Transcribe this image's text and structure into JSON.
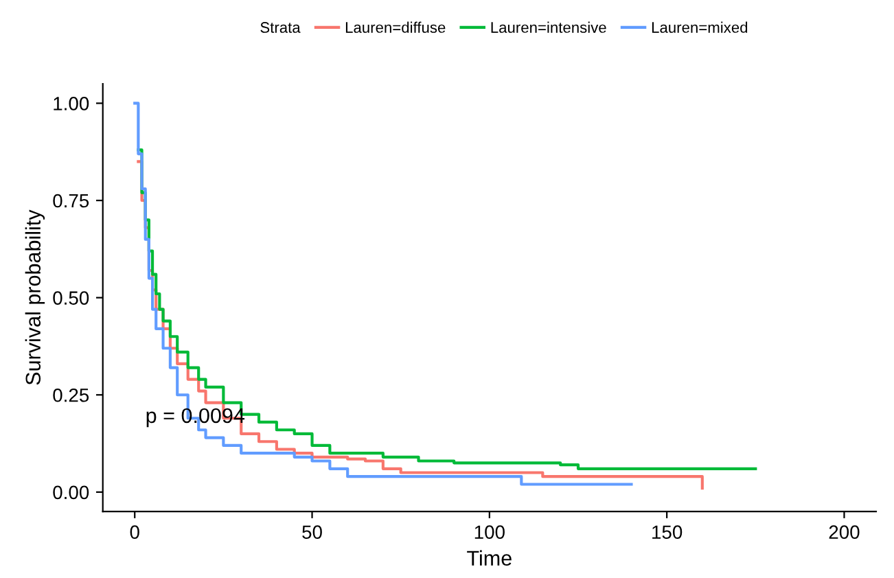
{
  "chart_data": {
    "type": "step",
    "xlabel": "Time",
    "ylabel": "Survival probability",
    "legend_title": "Strata",
    "legend": "top",
    "grid": false,
    "marker": "none",
    "line_style": "solid",
    "xlim": [
      -9,
      209
    ],
    "xticks": [
      0,
      50,
      100,
      150,
      200
    ],
    "ylim": [
      -0.05,
      1.05
    ],
    "yticks": [
      {
        "value": 0,
        "label": "0.00"
      },
      {
        "value": 0.25,
        "label": "0.25"
      },
      {
        "value": 0.5,
        "label": "0.50"
      },
      {
        "value": 0.75,
        "label": "0.75"
      },
      {
        "value": 1,
        "label": "1.00"
      }
    ],
    "annotations": [
      "p = 0.0094"
    ],
    "series": [
      {
        "name": "Lauren=diffuse",
        "color": "#f8766d",
        "x": [
          1,
          2,
          3,
          4,
          5,
          6,
          8,
          10,
          12,
          15,
          18,
          20,
          25,
          30,
          35,
          40,
          45,
          50,
          60,
          65,
          70,
          75,
          110,
          115,
          160,
          160
        ],
        "values": [
          0.85,
          0.75,
          0.68,
          0.57,
          0.52,
          0.47,
          0.42,
          0.37,
          0.33,
          0.29,
          0.26,
          0.23,
          0.19,
          0.15,
          0.13,
          0.11,
          0.1,
          0.09,
          0.085,
          0.08,
          0.06,
          0.05,
          0.05,
          0.04,
          0.04,
          0.01
        ]
      },
      {
        "name": "Lauren=intensive",
        "color": "#00ba38",
        "x": [
          1,
          2,
          3,
          4,
          5,
          6,
          7,
          8,
          10,
          12,
          15,
          18,
          20,
          25,
          30,
          35,
          40,
          45,
          50,
          55,
          60,
          70,
          80,
          90,
          110,
          120,
          125,
          175
        ],
        "values": [
          0.88,
          0.77,
          0.7,
          0.62,
          0.56,
          0.51,
          0.47,
          0.44,
          0.4,
          0.36,
          0.32,
          0.29,
          0.27,
          0.23,
          0.2,
          0.18,
          0.16,
          0.15,
          0.12,
          0.1,
          0.1,
          0.09,
          0.08,
          0.075,
          0.075,
          0.07,
          0.06,
          0.06
        ]
      },
      {
        "name": "Lauren=mixed",
        "color": "#619cff",
        "x": [
          0,
          1,
          2,
          3,
          4,
          5,
          6,
          8,
          10,
          12,
          15,
          18,
          20,
          25,
          30,
          45,
          50,
          55,
          60,
          108,
          109,
          140
        ],
        "values": [
          1,
          0.87,
          0.78,
          0.65,
          0.55,
          0.47,
          0.42,
          0.37,
          0.32,
          0.25,
          0.19,
          0.16,
          0.14,
          0.12,
          0.1,
          0.09,
          0.08,
          0.06,
          0.04,
          0.04,
          0.02,
          0.02
        ]
      }
    ]
  }
}
